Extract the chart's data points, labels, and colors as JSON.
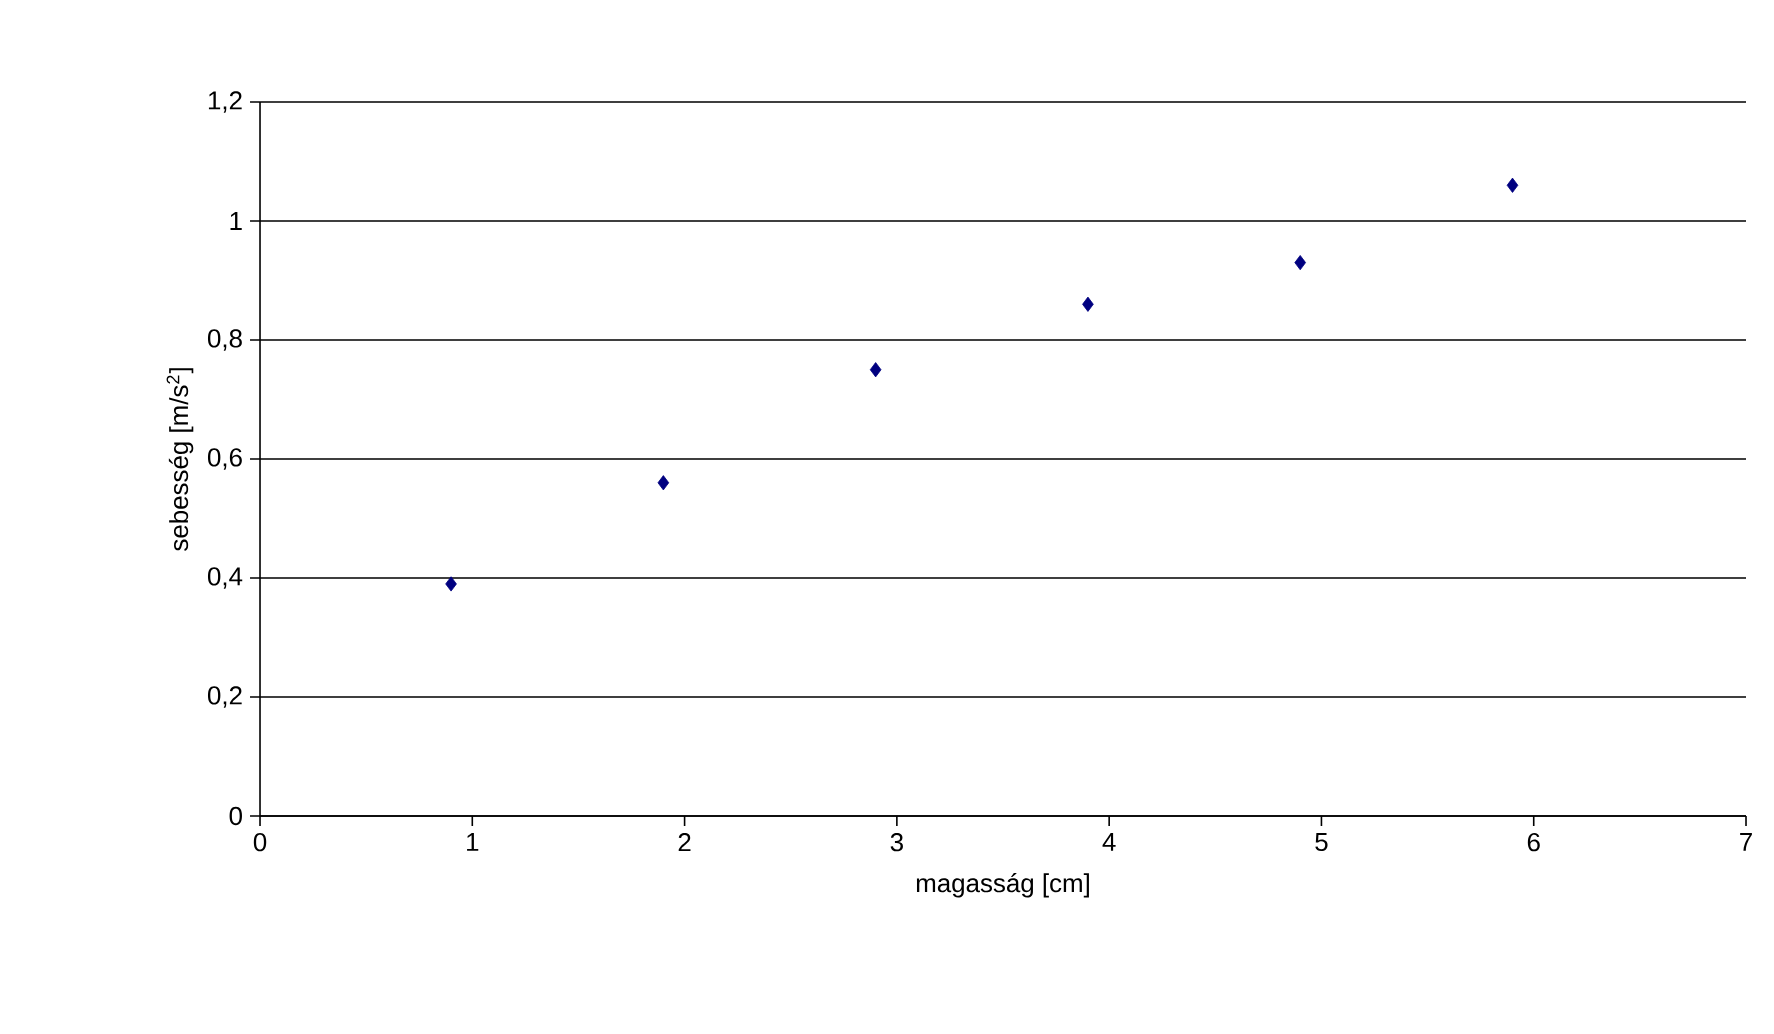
{
  "chart_data": {
    "type": "scatter",
    "xlabel": "magasság [cm]",
    "ylabel": "sebesség [m/s$^{2}$]",
    "x": [
      0.9,
      1.9,
      2.9,
      3.9,
      4.9,
      5.9
    ],
    "series": [
      {
        "color": "#000080",
        "values": [
          0.39,
          0.56,
          0.75,
          0.86,
          0.93,
          1.06
        ]
      }
    ],
    "marker": "diamond",
    "grid": "y",
    "xlim": [
      0,
      7
    ],
    "xticks": [
      0,
      1,
      2,
      3,
      4,
      5,
      6,
      7
    ],
    "ylim": [
      0,
      1.2
    ],
    "yticks": [
      0,
      {
        "value": 0.2,
        "label": "0,2"
      },
      {
        "value": 0.4,
        "label": "0,4"
      },
      {
        "value": 0.6,
        "label": "0,6"
      },
      {
        "value": 0.8,
        "label": "0,8"
      },
      1,
      {
        "value": 1.2,
        "label": "1,2"
      }
    ]
  }
}
